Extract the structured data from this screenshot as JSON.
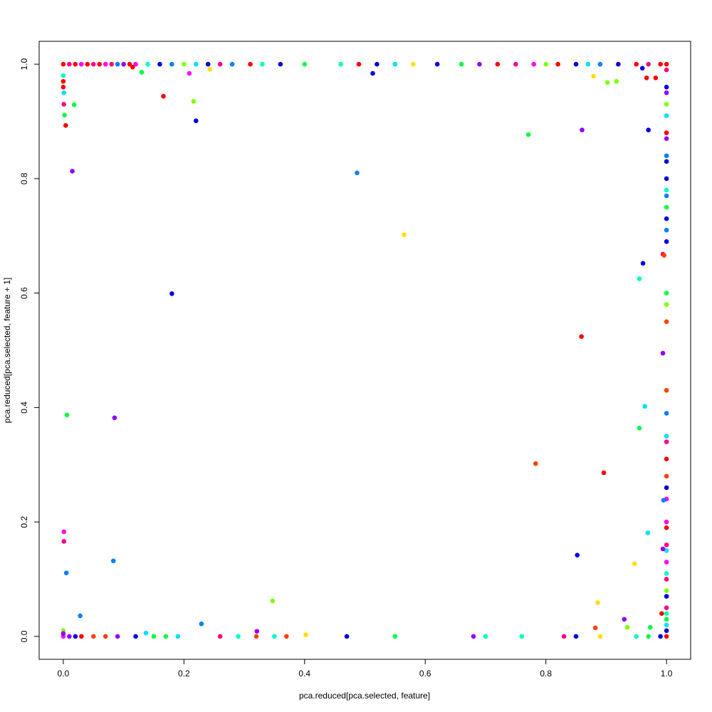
{
  "chart_data": {
    "type": "scatter",
    "xlabel": "pca.reduced[pca.selected, feature]",
    "ylabel": "pca.reduced[pca.selected, feature + 1]",
    "xlim": [
      -0.04,
      1.04
    ],
    "ylim": [
      -0.04,
      1.04
    ],
    "xticks": [
      {
        "value": 0,
        "label": "0.0"
      },
      0.2,
      0.4,
      0.6,
      0.8,
      {
        "value": 1,
        "label": "1.0"
      }
    ],
    "yticks": [
      {
        "value": 0,
        "label": "0.0"
      },
      0.2,
      0.4,
      0.6,
      0.8,
      {
        "value": 1,
        "label": "1.0"
      }
    ],
    "grid": false,
    "x": [
      0,
      0.01,
      0.02,
      0.03,
      0.04,
      0.05,
      0.06,
      0.07,
      0.08,
      0.09,
      0.1,
      0.11,
      0.12,
      0.14,
      0.16,
      0.18,
      0.2,
      0.22,
      0.24,
      0.26,
      0.28,
      0.31,
      0.33,
      0.36,
      0.4,
      0.46,
      0.49,
      0.52,
      0.55,
      0.58,
      0.62,
      0.66,
      0.69,
      0.72,
      0.75,
      0.78,
      0.8,
      0.82,
      0.85,
      0.87,
      0.89,
      0.92,
      0.95,
      0.97,
      0.99,
      1,
      1,
      1,
      1,
      1,
      1,
      1,
      1,
      1,
      1,
      1,
      1,
      1,
      1,
      1,
      1,
      1,
      1,
      1,
      1,
      1,
      1,
      1,
      1,
      1,
      1,
      1,
      1,
      1,
      1,
      1,
      1,
      1,
      1,
      1,
      1,
      1,
      1,
      1,
      1,
      1,
      1,
      1,
      0,
      0.01,
      0.02,
      0.03,
      0.05,
      0.07,
      0.09,
      0.12,
      0.15,
      0.17,
      0.19,
      0.26,
      0.29,
      0.32,
      0.35,
      0.37,
      0.47,
      0.55,
      0.68,
      0.7,
      0.76,
      0.83,
      0.85,
      0.89,
      0.95,
      0.97,
      0.99,
      0,
      0,
      0,
      0,
      0,
      0.166,
      0.216,
      0.22,
      0.015,
      0.487,
      0.565,
      0.18,
      0.006,
      0.085,
      0.083,
      0.005,
      0.001,
      0.001,
      0.028,
      0.229,
      0.347,
      0.321,
      0.771,
      0.859,
      0.86,
      0.783,
      0.896,
      0.852,
      0.961,
      0.955,
      0.955,
      0.964,
      0.969,
      0.947,
      0.97,
      0.879,
      0.902,
      0.917,
      0.886,
      0.882,
      0.93,
      0.935,
      0.973,
      0.992,
      0.994,
      0.995,
      0.994,
      0.994,
      0.996,
      0.967,
      0.982,
      0.96,
      0.004,
      0.001,
      0.002,
      0.001,
      0.018,
      0.13,
      0.115,
      0.209,
      0.243,
      0.513,
      0.402,
      0.137
    ],
    "values": [
      1,
      1,
      1,
      1,
      1,
      1,
      1,
      1,
      1,
      1,
      1,
      1,
      1,
      1,
      1,
      1,
      1,
      1,
      1,
      1,
      1,
      1,
      1,
      1,
      1,
      1,
      1,
      1,
      1,
      1,
      1,
      1,
      1,
      1,
      1,
      1,
      1,
      1,
      1,
      1,
      1,
      1,
      1,
      1,
      1,
      1,
      0.99,
      0.96,
      0.95,
      0.93,
      0.91,
      0.88,
      0.87,
      0.84,
      0.83,
      0.8,
      0.78,
      0.77,
      0.75,
      0.73,
      0.71,
      0.69,
      0.6,
      0.58,
      0.55,
      0.43,
      0.39,
      0.35,
      0.34,
      0.31,
      0.28,
      0.26,
      0.24,
      0.2,
      0.19,
      0.16,
      0.15,
      0.13,
      0.11,
      0.1,
      0.08,
      0.07,
      0.05,
      0.04,
      0.03,
      0.02,
      0.01,
      0,
      0,
      0,
      0,
      0,
      0,
      0,
      0,
      0,
      0,
      0,
      0,
      0,
      0,
      0,
      0,
      0,
      0,
      0,
      0,
      0,
      0,
      0,
      0,
      0,
      0,
      0,
      0,
      0.98,
      0.97,
      0.96,
      0.01,
      0.005,
      0.944,
      0.935,
      0.901,
      0.813,
      0.81,
      0.702,
      0.599,
      0.387,
      0.382,
      0.132,
      0.111,
      0.183,
      0.166,
      0.036,
      0.022,
      0.062,
      0.009,
      0.877,
      0.524,
      0.885,
      0.302,
      0.286,
      0.142,
      0.652,
      0.625,
      0.364,
      0.402,
      0.181,
      0.127,
      0.885,
      0.979,
      0.968,
      0.97,
      0.059,
      0.015,
      0.03,
      0.016,
      0.016,
      0.04,
      0.153,
      0.238,
      0.495,
      0.668,
      0.666,
      0.976,
      0.976,
      0.993,
      0.893,
      0.93,
      0.911,
      0.95,
      0.929,
      0.986,
      0.995,
      0.984,
      0.991,
      0.984,
      0.003,
      0.006
    ],
    "colors": [
      "#ff0000",
      "#ff0080",
      "#ff0000",
      "#ff00ff",
      "#ff0000",
      "#ff0080",
      "#ff0000",
      "#ff00ff",
      "#ff0080",
      "#0080ff",
      "#9000ff",
      "#ff0000",
      "#ff00ff",
      "#00ffc0",
      "#0000e0",
      "#0080ff",
      "#80ff00",
      "#00e0ff",
      "#0000e0",
      "#ff0080",
      "#0080ff",
      "#ff0000",
      "#00ffc0",
      "#0000e0",
      "#00ff40",
      "#00ffc0",
      "#ff0000",
      "#0000e0",
      "#00e0ff",
      "#ffe000",
      "#0000e0",
      "#00ff40",
      "#9000ff",
      "#ff0000",
      "#ff0080",
      "#ff00ff",
      "#80ff00",
      "#ff0000",
      "#0000e0",
      "#00e0ff",
      "#0080ff",
      "#0000e0",
      "#ff0000",
      "#ff0080",
      "#ff0000",
      "#ff0000",
      "#ff0080",
      "#0000e0",
      "#9000ff",
      "#80ff00",
      "#00e0ff",
      "#ff0000",
      "#9000ff",
      "#0080ff",
      "#0000e0",
      "#0000e0",
      "#00ffc0",
      "#0080ff",
      "#00ff40",
      "#0000e0",
      "#0080ff",
      "#0000e0",
      "#00ff40",
      "#80ff00",
      "#ff4000",
      "#ff4000",
      "#0080ff",
      "#00e0ff",
      "#ff0080",
      "#ff0000",
      "#ff4000",
      "#0000e0",
      "#ff00ff",
      "#ff00ff",
      "#ff0000",
      "#ff0080",
      "#00e0ff",
      "#ff00ff",
      "#00ffc0",
      "#ff0080",
      "#80ff00",
      "#0000e0",
      "#ff0080",
      "#00ffc0",
      "#00ff40",
      "#00e0ff",
      "#0000e0",
      "#ff0000",
      "#ff00ff",
      "#9000ff",
      "#0000e0",
      "#ff0000",
      "#ff4000",
      "#ff4000",
      "#9000ff",
      "#0000e0",
      "#00ff40",
      "#00ff40",
      "#00e0ff",
      "#ff0080",
      "#00ffc0",
      "#ff4000",
      "#00ffc0",
      "#ff4000",
      "#0000e0",
      "#00ff40",
      "#9000ff",
      "#00ffc0",
      "#00ffc0",
      "#ff0080",
      "#0000e0",
      "#ffe000",
      "#00ffc0",
      "#00ff40",
      "#0000e0",
      "#00ffc0",
      "#ff0000",
      "#ff0000",
      "#80ff00",
      "#9000ff",
      "#ff0000",
      "#80ff00",
      "#0000e0",
      "#9000ff",
      "#0080ff",
      "#ffe000",
      "#0000e0",
      "#00ff40",
      "#9000ff",
      "#0080ff",
      "#0080ff",
      "#ff00ff",
      "#ff0080",
      "#0080ff",
      "#0080ff",
      "#80ff00",
      "#9000ff",
      "#00ff40",
      "#ff0000",
      "#9000ff",
      "#ff4000",
      "#ff0000",
      "#0000e0",
      "#0000e0",
      "#00ffc0",
      "#00ff40",
      "#00e0ff",
      "#00e0ff",
      "#ffe000",
      "#0000e0",
      "#ffe000",
      "#80ff00",
      "#80ff00",
      "#ffe000",
      "#ff4000",
      "#9000ff",
      "#80ff00",
      "#00ff40",
      "#ff0000",
      "#9000ff",
      "#0080ff",
      "#9000ff",
      "#ff0080",
      "#ff4000",
      "#ff0000",
      "#ff0000",
      "#0000e0",
      "#ff0000",
      "#ff0080",
      "#00ff40",
      "#00e0ff",
      "#00ff40",
      "#00ff40",
      "#ff0000",
      "#ff00ff",
      "#ffe000",
      "#0000e0",
      "#ffe000",
      "#00e0ff"
    ]
  }
}
